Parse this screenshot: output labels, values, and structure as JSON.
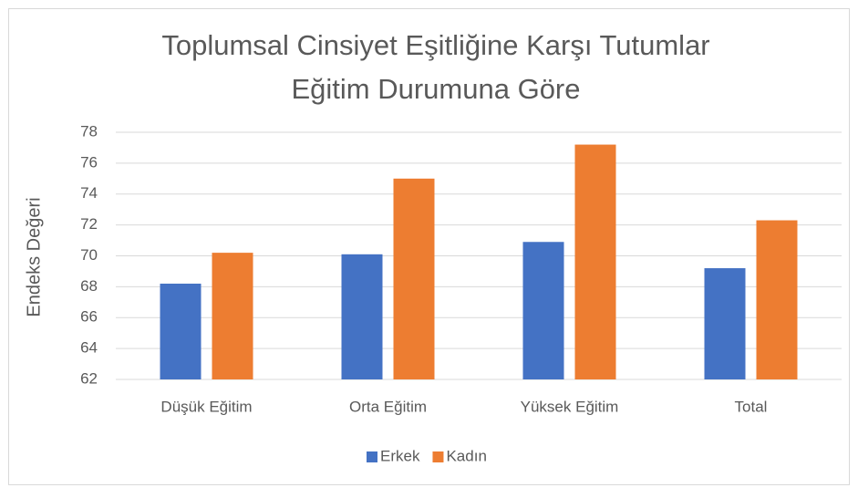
{
  "chart_data": {
    "type": "bar",
    "title": [
      "Toplumsal Cinsiyet Eşitliğine Karşı Tutumlar",
      "Eğitim Durumuna Göre"
    ],
    "y_label": "Endeks Değeri",
    "categories": [
      "Düşük Eğitim",
      "Orta Eğitim",
      "Yüksek Eğitim",
      "Total"
    ],
    "series": [
      {
        "name": "Erkek",
        "color": "#4472c4",
        "values": [
          68.2,
          70.1,
          70.9,
          69.2
        ]
      },
      {
        "name": "Kadın",
        "color": "#ed7d31",
        "values": [
          70.2,
          75.0,
          77.2,
          72.3
        ]
      }
    ],
    "ylim": [
      62,
      78
    ],
    "yticks": [
      62,
      64,
      66,
      68,
      70,
      72,
      74,
      76,
      78
    ],
    "grid": true,
    "legend": "bottom"
  }
}
